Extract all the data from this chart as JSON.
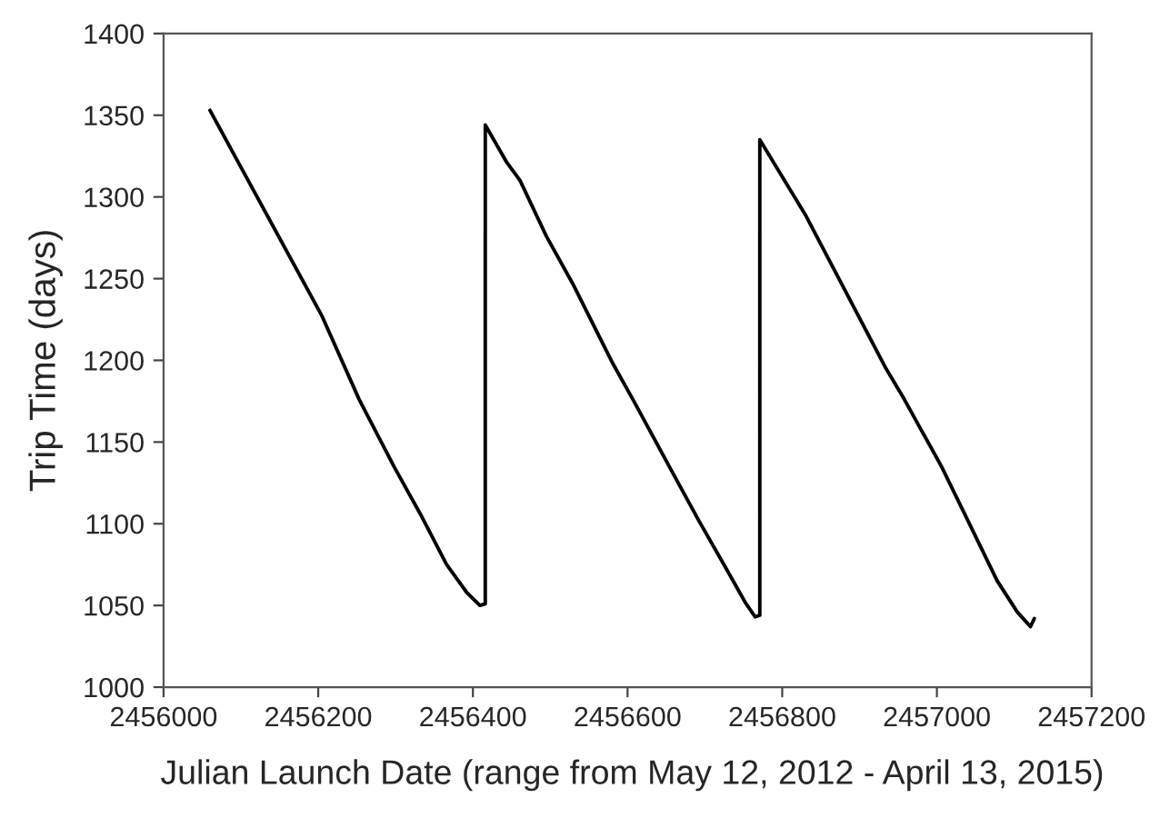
{
  "chart_data": {
    "type": "line",
    "xlabel": "Julian Launch Date (range from May 12, 2012 - April 13, 2015)",
    "ylabel": "Trip Time (days)",
    "x": [
      2456060,
      2456205,
      2456253,
      2456298,
      2456332,
      2456366,
      2456392,
      2456409,
      2456416,
      2456416,
      2456444,
      2456461,
      2456495,
      2456529,
      2456581,
      2456607,
      2456654,
      2456692,
      2456727,
      2456752,
      2456765,
      2456771,
      2456771,
      2456830,
      2456881,
      2456933,
      2456958,
      2457006,
      2457040,
      2457078,
      2457104,
      2457121,
      2457126
    ],
    "series": [
      {
        "color": "#000000",
        "values": [
          1353,
          1227,
          1176,
          1135,
          1106,
          1075,
          1058,
          1050,
          1051,
          1344,
          1321,
          1310,
          1276,
          1247,
          1198,
          1176,
          1135,
          1102,
          1073,
          1052,
          1043,
          1044,
          1335,
          1289,
          1243,
          1196,
          1176,
          1135,
          1102,
          1065,
          1046,
          1037,
          1042
        ]
      }
    ],
    "xlim": [
      2456000,
      2457200
    ],
    "xticks": [
      2456000,
      2456200,
      2456400,
      2456600,
      2456800,
      2457000,
      2457200
    ],
    "ylim": [
      1000,
      1400
    ],
    "yticks": [
      1000,
      1050,
      1100,
      1150,
      1200,
      1250,
      1300,
      1350,
      1400
    ],
    "grid": false,
    "marker": "none",
    "line_style": "solid",
    "legend": false
  }
}
